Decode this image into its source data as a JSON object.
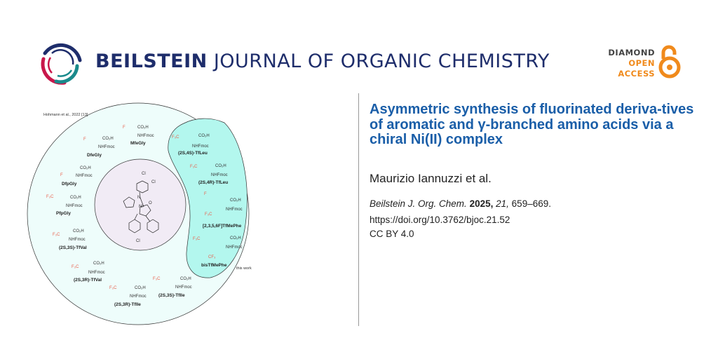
{
  "header": {
    "journal_bold": "BEILSTEIN",
    "journal_rest": "JOURNAL OF ORGANIC CHEMISTRY",
    "badge": {
      "line1": "DIAMOND",
      "line2": "OPEN",
      "line3": "ACCESS"
    },
    "colors": {
      "navy": "#1e2d6b",
      "crimson": "#c8174b",
      "teal": "#1a8a8c",
      "orange": "#f08a1c"
    }
  },
  "article": {
    "title": "Asymmetric synthesis of fluorinated deriva-tives of aromatic and γ-branched amino acids via a chiral Ni(II) complex",
    "authors": "Maurizio Iannuzzi et al.",
    "citation": {
      "journal": "Beilstein J. Org. Chem.",
      "year": "2025,",
      "volume": "21,",
      "pages": "659–669."
    },
    "doi": "https://doi.org/10.3762/bjoc.21.52",
    "license": "CC BY 4.0",
    "title_color": "#1a5ea8"
  },
  "figure": {
    "reference": "Hohmann et al., 2022 [13]",
    "this_work": "this work",
    "center": {
      "cl_top": "Cl",
      "cl_right": "Cl",
      "cl_bottom": "Cl",
      "n": "N",
      "ni": "Ni",
      "o": "O"
    },
    "fragments": {
      "co2h": "CO₂H",
      "nhfmoc": "NHFmoc",
      "f3c": "F₃C",
      "f": "F",
      "cf3": "CF₃"
    },
    "compounds_prior": [
      "MfeGly",
      "DfeGly",
      "DfpGly",
      "PfpGly",
      "(2S,3S)-TfVal",
      "(2S,3R)-TfVal",
      "(2S,3R)-TfIle",
      "(2S,3S)-TfIle"
    ],
    "compounds_this_work": [
      "(2S,4S)-TfLeu",
      "(2S,4R)-TfLeu",
      "[2,3,5,6F]TfMePhe",
      "bisTfMePhe"
    ],
    "colors": {
      "outer": "#eefdfb",
      "highlight": "#b3f7ee",
      "inner": "#f1ebf5"
    }
  }
}
